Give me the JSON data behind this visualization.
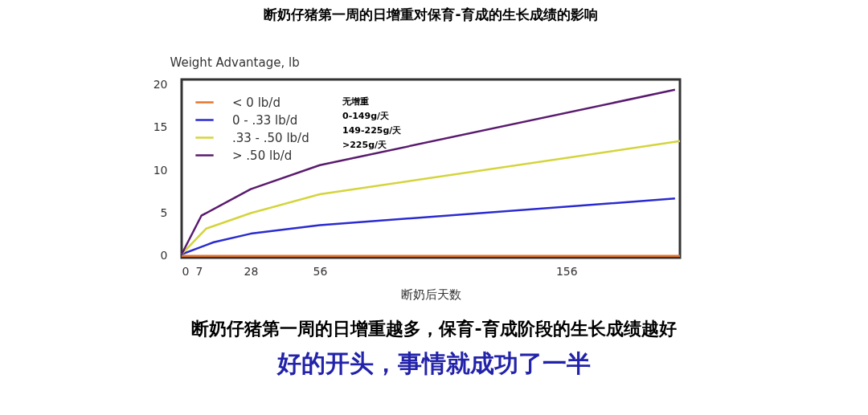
{
  "chart_data": {
    "type": "line",
    "title": "断奶仔猪第一周的日增重对保育-育成的生长成绩的影响",
    "xlabel": "断奶后天数",
    "ylabel": "Weight Advantage, lb",
    "xlim": [
      0,
      202
    ],
    "xticks": [
      0,
      7,
      28,
      56,
      156
    ],
    "ylim": [
      -0.2,
      20.6
    ],
    "yticks": [
      0,
      5,
      10,
      15,
      20
    ],
    "grid": false,
    "legend": "top left",
    "line_style": "solid",
    "series": [
      {
        "name": "< 0 lb/d",
        "color": "#e8732a",
        "x": [
          0,
          202
        ],
        "values": [
          0,
          0
        ]
      },
      {
        "name": "0 - .33 lb/d",
        "color": "#2a2ad0",
        "x": [
          0,
          13,
          28,
          56,
          200
        ],
        "values": [
          0.2,
          1.6,
          2.6,
          3.6,
          6.7
        ]
      },
      {
        "name": ".33 - .50 lb/d",
        "color": "#d4d43c",
        "x": [
          0,
          10,
          28,
          56,
          202
        ],
        "values": [
          0.2,
          3.2,
          5.0,
          7.2,
          13.4
        ]
      },
      {
        "name": "> .50 lb/d",
        "color": "#5a1a6e",
        "x": [
          0,
          8,
          28,
          56,
          200
        ],
        "values": [
          0.2,
          4.7,
          7.8,
          10.6,
          19.4
        ]
      }
    ],
    "annotations": [
      "无增重",
      "0-149g/天",
      "149-225g/天",
      ">225g/天",
      "断奶仔猪第一周的日增重越多，保育-育成阶段的生长成绩越好",
      "好的开头，事情就成功了一半"
    ]
  }
}
